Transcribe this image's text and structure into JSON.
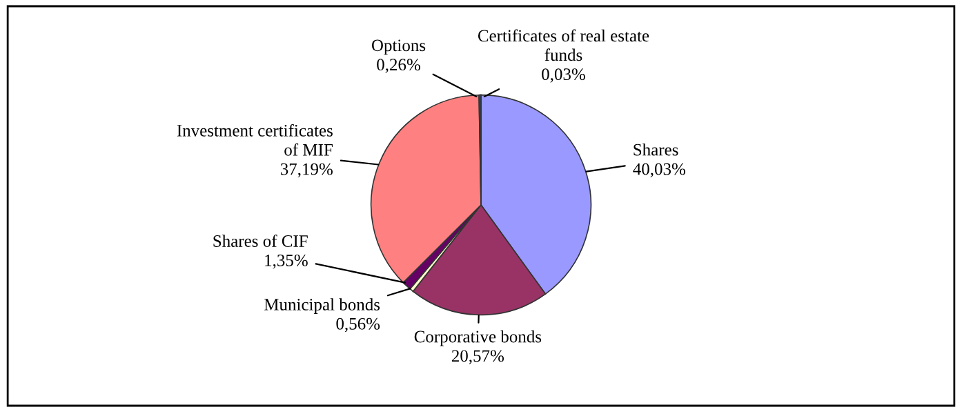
{
  "chart_data": {
    "type": "pie",
    "categories": [
      "Shares",
      "Corporative bonds",
      "Municipal bonds",
      "Shares of CIF",
      "Investment certificates\nof MIF",
      "Options",
      "Certificates of real estate\nfunds"
    ],
    "values": [
      40.03,
      20.57,
      0.56,
      1.35,
      37.19,
      0.26,
      0.03
    ],
    "value_labels": [
      "40,03%",
      "20,57%",
      "0,56%",
      "1,35%",
      "37,19%",
      "0,26%",
      "0,03%"
    ],
    "colors": [
      "#9999ff",
      "#993366",
      "#ffffcc",
      "#660066",
      "#ff8080",
      "#0066cc",
      "#ccffff"
    ],
    "legend": false
  }
}
